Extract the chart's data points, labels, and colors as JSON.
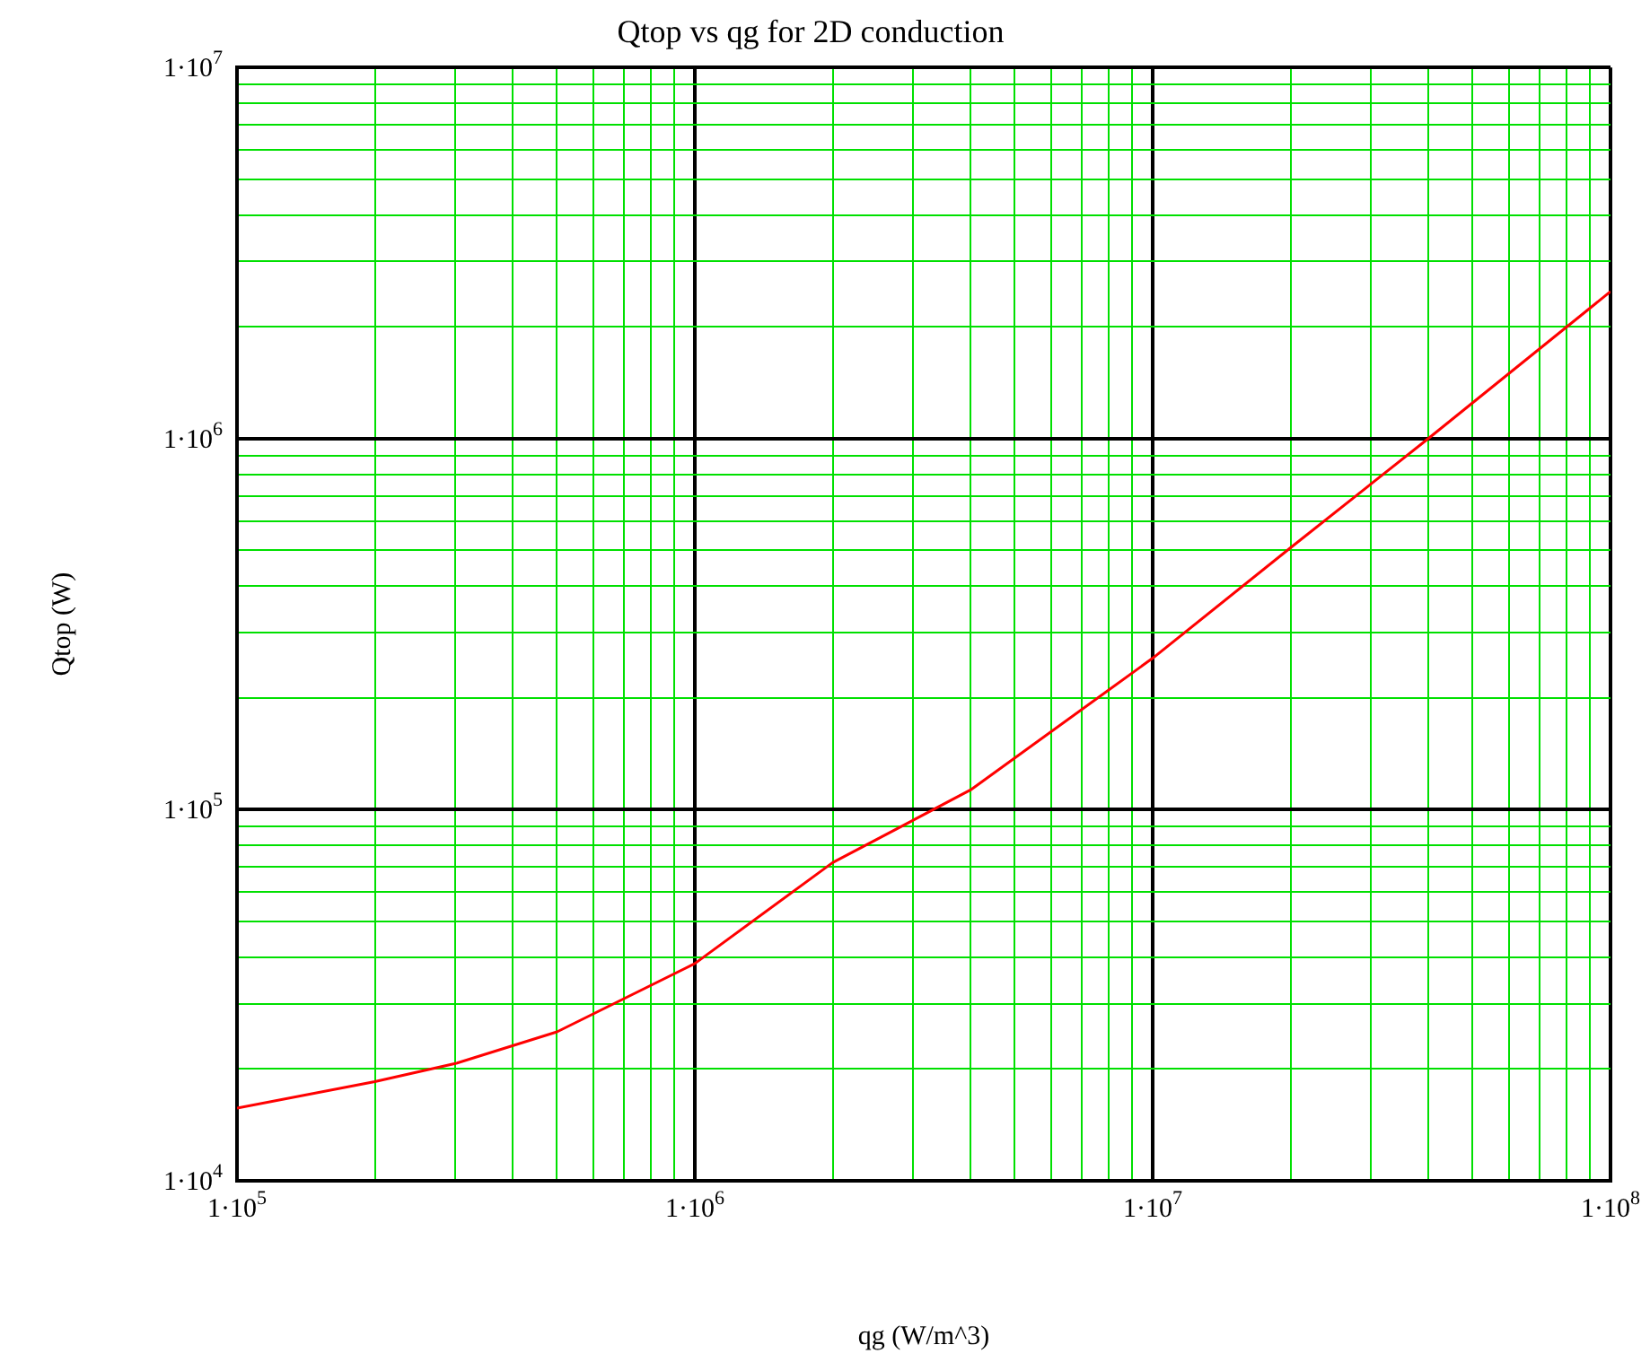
{
  "chart_data": {
    "type": "line",
    "title": "Qtop vs qg for 2D conduction",
    "xlabel": "qg (W/m^3)",
    "ylabel": "Qtop (W)",
    "x": [
      100000,
      200000,
      300000,
      500000,
      1000000,
      2000000,
      4000000,
      10000000,
      20000000,
      40000000,
      100000000
    ],
    "series": [
      {
        "color": "#ff0000",
        "values": [
          15700,
          18500,
          20700,
          25200,
          38500,
          72000,
          113000,
          256000,
          508000,
          1000000,
          2490000
        ]
      }
    ],
    "log": "xy",
    "grid": true,
    "legend": false,
    "marker": "none",
    "line_style": "solid",
    "xlim": [
      100000,
      100000000
    ],
    "ylim": [
      10000,
      10000000
    ],
    "xticks": [
      {
        "value": 100000,
        "label": "1·10$^{5}$"
      },
      {
        "value": 200000,
        "label": null
      },
      {
        "value": 300000,
        "label": null
      },
      {
        "value": 400000,
        "label": null
      },
      {
        "value": 500000,
        "label": null
      },
      {
        "value": 600000,
        "label": null
      },
      {
        "value": 700000,
        "label": null
      },
      {
        "value": 800000,
        "label": null
      },
      {
        "value": 900000,
        "label": null
      },
      {
        "value": 1000000,
        "label": "1·10$^{6}$"
      },
      {
        "value": 2000000,
        "label": null
      },
      {
        "value": 3000000,
        "label": null
      },
      {
        "value": 4000000,
        "label": null
      },
      {
        "value": 5000000,
        "label": null
      },
      {
        "value": 6000000,
        "label": null
      },
      {
        "value": 7000000,
        "label": null
      },
      {
        "value": 8000000,
        "label": null
      },
      {
        "value": 9000000,
        "label": null
      },
      {
        "value": 10000000,
        "label": "1·10$^{7}$"
      },
      {
        "value": 20000000,
        "label": null
      },
      {
        "value": 30000000,
        "label": null
      },
      {
        "value": 40000000,
        "label": null
      },
      {
        "value": 50000000,
        "label": null
      },
      {
        "value": 60000000,
        "label": null
      },
      {
        "value": 70000000,
        "label": null
      },
      {
        "value": 80000000,
        "label": null
      },
      {
        "value": 90000000,
        "label": null
      },
      {
        "value": 100000000,
        "label": "1·10$^{8}$"
      }
    ],
    "yticks": [
      {
        "value": 10000,
        "label": "1·10$^{4}$"
      },
      {
        "value": 20000,
        "label": null
      },
      {
        "value": 30000,
        "label": null
      },
      {
        "value": 40000,
        "label": null
      },
      {
        "value": 50000,
        "label": null
      },
      {
        "value": 60000,
        "label": null
      },
      {
        "value": 70000,
        "label": null
      },
      {
        "value": 80000,
        "label": null
      },
      {
        "value": 90000,
        "label": null
      },
      {
        "value": 100000,
        "label": "1·10$^{5}$"
      },
      {
        "value": 200000,
        "label": null
      },
      {
        "value": 300000,
        "label": null
      },
      {
        "value": 400000,
        "label": null
      },
      {
        "value": 500000,
        "label": null
      },
      {
        "value": 600000,
        "label": null
      },
      {
        "value": 700000,
        "label": null
      },
      {
        "value": 800000,
        "label": null
      },
      {
        "value": 900000,
        "label": null
      },
      {
        "value": 1000000,
        "label": "1·10$^{6}$"
      },
      {
        "value": 2000000,
        "label": null
      },
      {
        "value": 3000000,
        "label": null
      },
      {
        "value": 4000000,
        "label": null
      },
      {
        "value": 5000000,
        "label": null
      },
      {
        "value": 6000000,
        "label": null
      },
      {
        "value": 7000000,
        "label": null
      },
      {
        "value": 8000000,
        "label": null
      },
      {
        "value": 9000000,
        "label": null
      },
      {
        "value": 10000000,
        "label": "1·10$^{7}$"
      }
    ]
  }
}
